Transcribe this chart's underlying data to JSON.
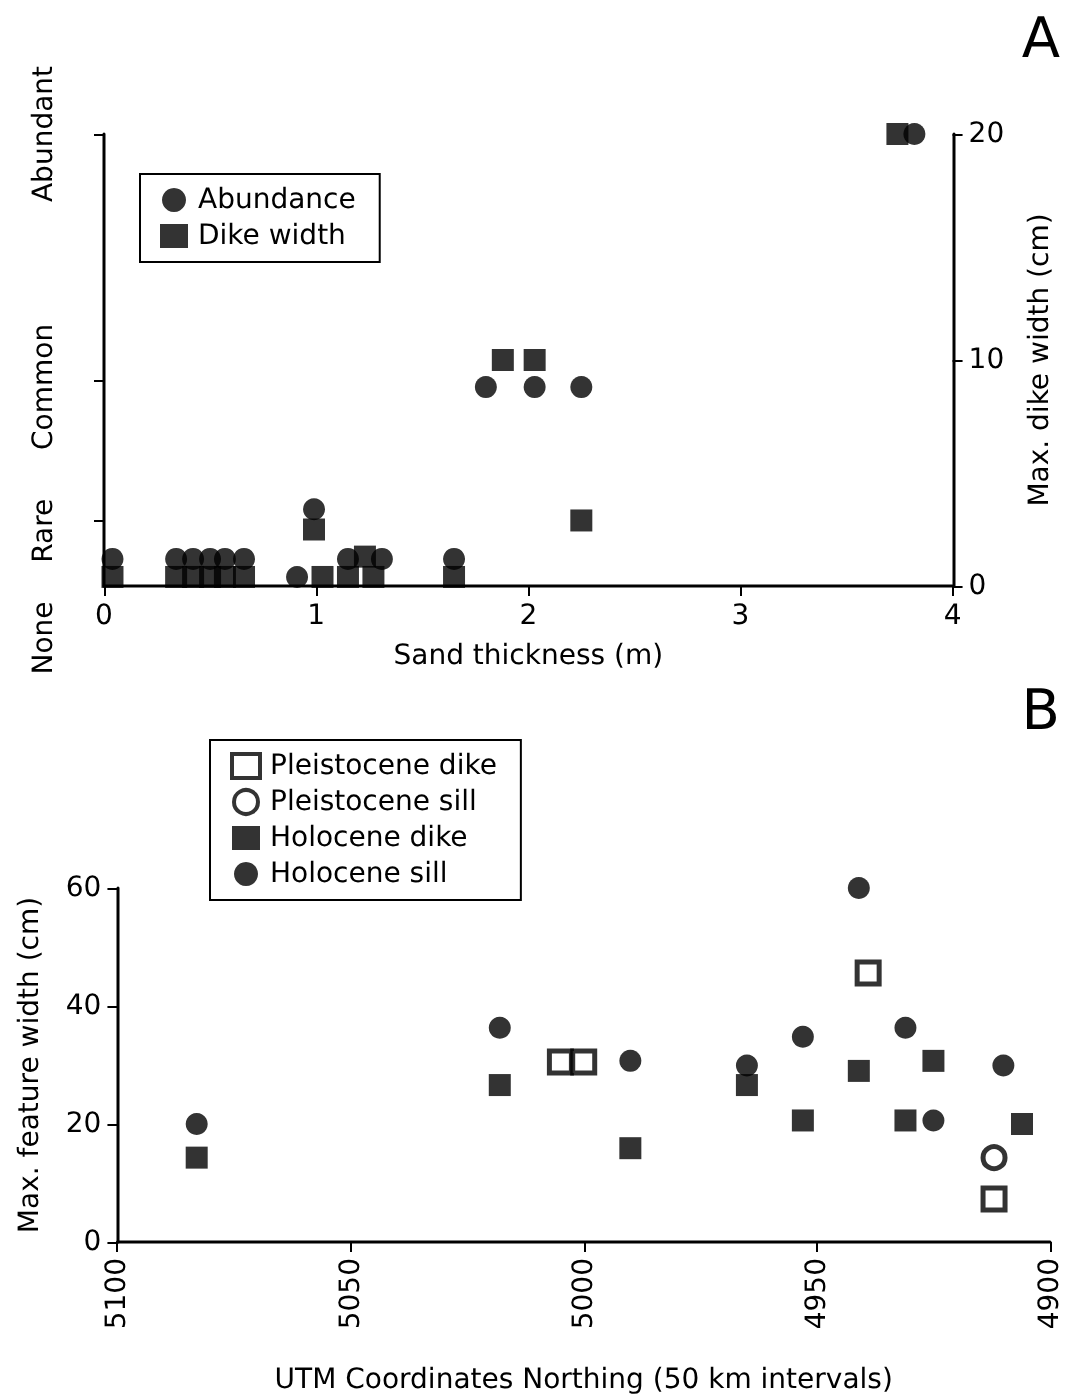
{
  "chart_data": [
    {
      "type": "scatter",
      "title": "A",
      "xlabel": "Sand thickness (m)",
      "y2label": "Max. dike width (cm)",
      "xlim": [
        0,
        4
      ],
      "xticks": [
        0,
        1,
        2,
        3,
        4
      ],
      "annotations": [
        "None",
        "Rare",
        "Common",
        "Abundant"
      ],
      "y2lim": [
        0,
        20
      ],
      "y2ticks": [
        0,
        10,
        20
      ],
      "legend": "top left",
      "grid": false,
      "series": [
        {
          "name": "Abundance",
          "color": "#000000",
          "marker": "circle",
          "axis": "y2",
          "x": [
            0.04,
            0.34,
            0.42,
            0.5,
            0.57,
            0.66,
            0.91,
            0.99,
            1.15,
            1.31,
            1.65,
            1.8,
            2.03,
            2.25,
            3.82
          ],
          "values": [
            1.2,
            1.2,
            1.2,
            1.2,
            1.2,
            1.2,
            0.4,
            3.4,
            1.2,
            1.2,
            1.2,
            8.8,
            8.8,
            8.8,
            20
          ]
        },
        {
          "name": "Dike width",
          "color": "#000000",
          "marker": "square",
          "axis": "y2",
          "x": [
            0.04,
            0.34,
            0.42,
            0.5,
            0.57,
            0.66,
            0.99,
            1.03,
            1.15,
            1.23,
            1.27,
            1.65,
            1.88,
            2.03,
            2.25,
            3.74
          ],
          "values": [
            0.4,
            0.4,
            0.4,
            0.4,
            0.4,
            0.4,
            2.5,
            0.4,
            0.4,
            1.3,
            0.4,
            0.4,
            10,
            10,
            2.9,
            20
          ]
        }
      ]
    },
    {
      "type": "scatter",
      "title": "B",
      "xlabel": "UTM Coordinates Northing (50 km intervals)",
      "ylabel": "Max. feature width (cm)",
      "xlim": [
        5100,
        4900
      ],
      "xticks": [
        5100,
        5050,
        5000,
        4950,
        4900
      ],
      "ylim": [
        0,
        60
      ],
      "yticks": [
        0,
        20,
        40,
        60
      ],
      "legend": "top left",
      "grid": false,
      "series": [
        {
          "name": "Pleistocene dike",
          "color": "#000000",
          "marker": "square-open",
          "x": [
            5005,
            5000,
            4939,
            4912
          ],
          "values": [
            30.5,
            30.5,
            45.6,
            7.3
          ]
        },
        {
          "name": "Pleistocene sill",
          "color": "#000000",
          "marker": "circle-open",
          "x": [
            4912
          ],
          "values": [
            14.3
          ]
        },
        {
          "name": "Holocene dike",
          "color": "#000000",
          "marker": "square",
          "x": [
            5083,
            5018,
            4990,
            4965,
            4953,
            4941,
            4931,
            4925,
            4906
          ],
          "values": [
            14.3,
            26.6,
            15.9,
            26.6,
            20.6,
            29,
            20.6,
            30.7,
            20
          ]
        },
        {
          "name": "Holocene sill",
          "color": "#000000",
          "marker": "circle",
          "x": [
            5083,
            5018,
            4990,
            4965,
            4953,
            4941,
            4931,
            4925,
            4910
          ],
          "values": [
            20,
            36.3,
            30.7,
            29.9,
            34.8,
            60,
            36.3,
            20.6,
            29.9
          ]
        }
      ]
    }
  ]
}
